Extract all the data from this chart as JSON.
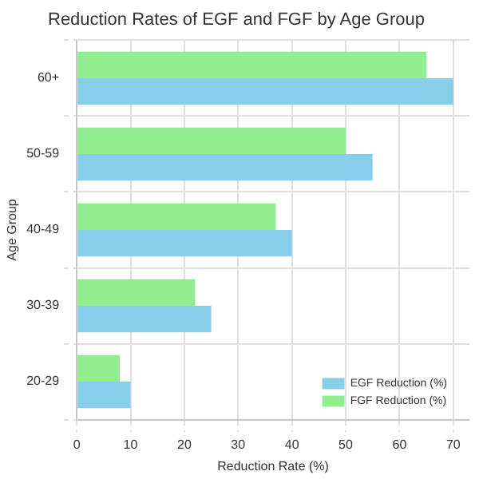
{
  "chart_data": {
    "type": "bar",
    "orientation": "horizontal",
    "title": "Reduction Rates of EGF and FGF by Age Group",
    "xlabel": "Reduction Rate (%)",
    "ylabel": "Age Group",
    "categories": [
      "60+",
      "50-59",
      "40-49",
      "30-39",
      "20-29"
    ],
    "series": [
      {
        "name": "EGF Reduction (%)",
        "color": "#87ceeb",
        "values": [
          70,
          55,
          40,
          25,
          10
        ]
      },
      {
        "name": "FGF Reduction (%)",
        "color": "#90ee90",
        "values": [
          65,
          50,
          37,
          22,
          8
        ]
      }
    ],
    "xlim": [
      0,
      73
    ],
    "xticks": [
      0,
      10,
      20,
      30,
      40,
      50,
      60,
      70
    ],
    "grid": true,
    "legend": "bottom right"
  }
}
